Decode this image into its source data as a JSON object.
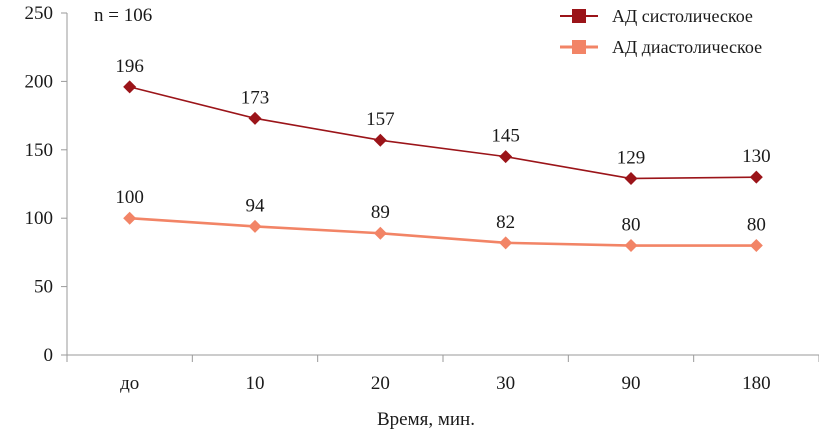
{
  "chart_data": {
    "type": "line",
    "annotation": "n = 106",
    "xlabel": "Время, мин.",
    "ylabel": "",
    "ylim": [
      0,
      250
    ],
    "yticks": [
      0,
      50,
      100,
      150,
      200,
      250
    ],
    "categories": [
      "до",
      "10",
      "20",
      "30",
      "90",
      "180"
    ],
    "legend_position": "top-right",
    "series": [
      {
        "name": "АД систолическое",
        "color": "#9b1419",
        "values": [
          196,
          173,
          157,
          145,
          129,
          130
        ]
      },
      {
        "name": "АД диастолическое",
        "color": "#f28466",
        "values": [
          100,
          94,
          89,
          82,
          80,
          80
        ]
      }
    ]
  }
}
